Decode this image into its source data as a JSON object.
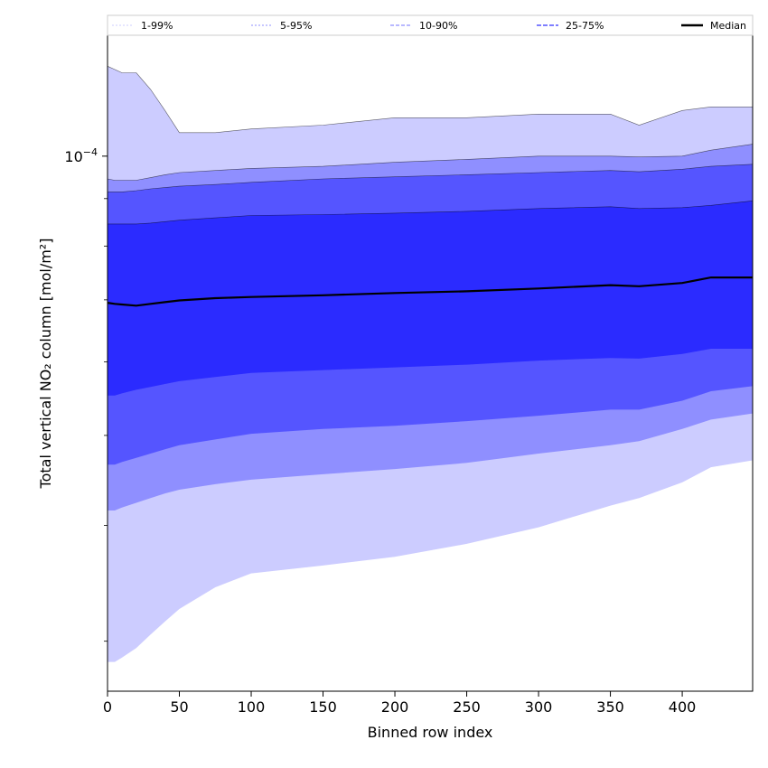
{
  "chart_data": {
    "type": "area",
    "title": "",
    "xlabel": "Binned row index",
    "ylabel": "Total vertical NO₂ column [mol/m²]",
    "xlim": [
      0,
      449
    ],
    "ylim": [
      2.65e-05,
      0.000135
    ],
    "yscale": "log",
    "grid": false,
    "legend_placement": "top",
    "x_ticks": [
      0,
      50,
      100,
      150,
      200,
      250,
      300,
      350,
      400
    ],
    "x_tick_labels": [
      "0",
      "50",
      "100",
      "150",
      "200",
      "250",
      "300",
      "350",
      "400"
    ],
    "y_major_tick_value": 0.0001,
    "y_major_tick_label_base": "10",
    "y_major_tick_label_exp": "−4",
    "y_minor_ticks": [
      3e-05,
      4e-05,
      5e-05,
      6e-05,
      7e-05,
      8e-05,
      9e-05
    ],
    "x": [
      0,
      5,
      10,
      20,
      30,
      40,
      50,
      75,
      100,
      150,
      200,
      250,
      300,
      350,
      370,
      400,
      420,
      449
    ],
    "series": [
      {
        "name": "1-99%",
        "lower": [
          2.85e-05,
          2.85e-05,
          2.88e-05,
          2.95e-05,
          3.05e-05,
          3.15e-05,
          3.25e-05,
          3.43e-05,
          3.55e-05,
          3.62e-05,
          3.7e-05,
          3.82e-05,
          3.98e-05,
          4.2e-05,
          4.28e-05,
          4.45e-05,
          4.62e-05,
          4.7e-05
        ],
        "upper": [
          0.000125,
          0.000124,
          0.000123,
          0.000123,
          0.000118,
          0.000112,
          0.000106,
          0.000106,
          0.000107,
          0.000108,
          0.00011,
          0.00011,
          0.000111,
          0.000111,
          0.000108,
          0.000112,
          0.000113,
          0.000113
        ],
        "color": "#ccccff"
      },
      {
        "name": "5-95%",
        "lower": [
          4.15e-05,
          4.15e-05,
          4.18e-05,
          4.23e-05,
          4.28e-05,
          4.33e-05,
          4.37e-05,
          4.43e-05,
          4.48e-05,
          4.54e-05,
          4.6e-05,
          4.67e-05,
          4.78e-05,
          4.88e-05,
          4.93e-05,
          5.08e-05,
          5.2e-05,
          5.28e-05
        ],
        "upper": [
          9.45e-05,
          9.42e-05,
          9.42e-05,
          9.42e-05,
          9.48e-05,
          9.55e-05,
          9.6e-05,
          9.65e-05,
          9.7e-05,
          9.75e-05,
          9.85e-05,
          9.92e-05,
          0.0001,
          0.0001,
          9.98e-05,
          0.0001,
          0.0001015,
          0.000103
        ],
        "color": "#8f8fff"
      },
      {
        "name": "10-90%",
        "lower": [
          4.65e-05,
          4.65e-05,
          4.68e-05,
          4.73e-05,
          4.78e-05,
          4.83e-05,
          4.88e-05,
          4.95e-05,
          5.02e-05,
          5.08e-05,
          5.12e-05,
          5.18e-05,
          5.25e-05,
          5.33e-05,
          5.33e-05,
          5.45e-05,
          5.58e-05,
          5.65e-05
        ],
        "upper": [
          9.15e-05,
          9.15e-05,
          9.15e-05,
          9.18e-05,
          9.22e-05,
          9.25e-05,
          9.28e-05,
          9.32e-05,
          9.37e-05,
          9.45e-05,
          9.5e-05,
          9.55e-05,
          9.6e-05,
          9.65e-05,
          9.62e-05,
          9.68e-05,
          9.75e-05,
          9.8e-05
        ],
        "color": "#5555ff"
      },
      {
        "name": "25-75%",
        "lower": [
          5.52e-05,
          5.52e-05,
          5.55e-05,
          5.6e-05,
          5.64e-05,
          5.68e-05,
          5.72e-05,
          5.78e-05,
          5.84e-05,
          5.88e-05,
          5.92e-05,
          5.96e-05,
          6.02e-05,
          6.06e-05,
          6.05e-05,
          6.12e-05,
          6.2e-05,
          6.2e-05
        ],
        "upper": [
          8.45e-05,
          8.45e-05,
          8.45e-05,
          8.45e-05,
          8.47e-05,
          8.5e-05,
          8.53e-05,
          8.58e-05,
          8.63e-05,
          8.65e-05,
          8.68e-05,
          8.72e-05,
          8.78e-05,
          8.82e-05,
          8.78e-05,
          8.8e-05,
          8.85e-05,
          8.95e-05
        ],
        "color": "#2b2bff"
      },
      {
        "name": "Median",
        "values": [
          6.95e-05,
          6.93e-05,
          6.92e-05,
          6.9e-05,
          6.93e-05,
          6.96e-05,
          6.99e-05,
          7.03e-05,
          7.05e-05,
          7.08e-05,
          7.12e-05,
          7.15e-05,
          7.2e-05,
          7.26e-05,
          7.24e-05,
          7.3e-05,
          7.4e-05,
          7.4e-05
        ],
        "color": "#000000"
      }
    ]
  }
}
